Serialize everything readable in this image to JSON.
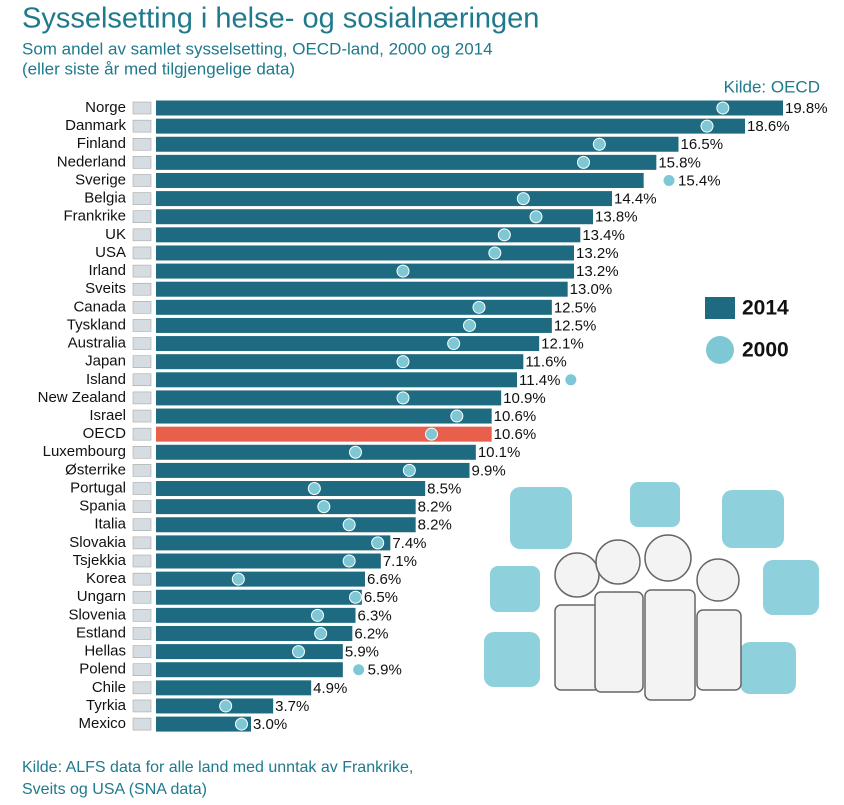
{
  "chart_data": {
    "type": "bar",
    "title": "Sysselsetting i helse- og sosialnæringen",
    "subtitle": [
      "Som andel av samlet sysselsetting, OECD-land, 2000 og 2014",
      "(eller siste år med tilgjengelige data)"
    ],
    "source_top": "Kilde: OECD",
    "footnote": [
      "Kilde: ALFS data for alle land med unntak av Frankrike,",
      "Sveits og USA (SNA data)"
    ],
    "categories": [
      "Norge",
      "Danmark",
      "Finland",
      "Nederland",
      "Sverige",
      "Belgia",
      "Frankrike",
      "UK",
      "USA",
      "Irland",
      "Sveits",
      "Canada",
      "Tyskland",
      "Australia",
      "Japan",
      "Island",
      "New Zealand",
      "Israel",
      "OECD",
      "Luxembourg",
      "Østerrike",
      "Portugal",
      "Spania",
      "Italia",
      "Slovakia",
      "Tsjekkia",
      "Korea",
      "Ungarn",
      "Slovenia",
      "Estland",
      "Hellas",
      "Polend",
      "Chile",
      "Tyrkia",
      "Mexico"
    ],
    "series": [
      {
        "name": "2014",
        "color": "#1e6a80",
        "mark": "bar",
        "values": [
          19.8,
          18.6,
          16.5,
          15.8,
          15.4,
          14.4,
          13.8,
          13.4,
          13.2,
          13.2,
          13.0,
          12.5,
          12.5,
          12.1,
          11.6,
          11.4,
          10.9,
          10.6,
          10.6,
          10.1,
          9.9,
          8.5,
          8.2,
          8.2,
          7.4,
          7.1,
          6.6,
          6.5,
          6.3,
          6.2,
          5.9,
          5.9,
          4.9,
          3.7,
          3.0
        ],
        "value_labels": [
          "19.8%",
          "18.6%",
          "16.5%",
          "15.8%",
          "15.4%",
          "14.4%",
          "13.8%",
          "13.4%",
          "13.2%",
          "13.2%",
          "13.0%",
          "12.5%",
          "12.5%",
          "12.1%",
          "11.6%",
          "11.4%",
          "10.9%",
          "10.6%",
          "10.6%",
          "10.1%",
          "9.9%",
          "8.5%",
          "8.2%",
          "8.2%",
          "7.4%",
          "7.1%",
          "6.6%",
          "6.5%",
          "6.3%",
          "6.2%",
          "5.9%",
          "5.9%",
          "4.9%",
          "3.7%",
          "3.0%"
        ]
      },
      {
        "name": "2000",
        "color": "#7ec8d6",
        "mark": "dot",
        "values": [
          17.9,
          17.4,
          14.0,
          13.5,
          16.2,
          11.6,
          12.0,
          11.0,
          10.7,
          7.8,
          null,
          10.2,
          9.9,
          9.4,
          7.8,
          13.1,
          7.8,
          9.5,
          8.7,
          6.3,
          8.0,
          5.0,
          5.3,
          6.1,
          7.0,
          6.1,
          2.6,
          6.3,
          5.1,
          5.2,
          4.5,
          6.4,
          null,
          2.2,
          2.7
        ]
      }
    ],
    "highlight": {
      "category": "OECD",
      "color": "#e8604c"
    },
    "xlim": [
      0,
      19.8
    ]
  }
}
